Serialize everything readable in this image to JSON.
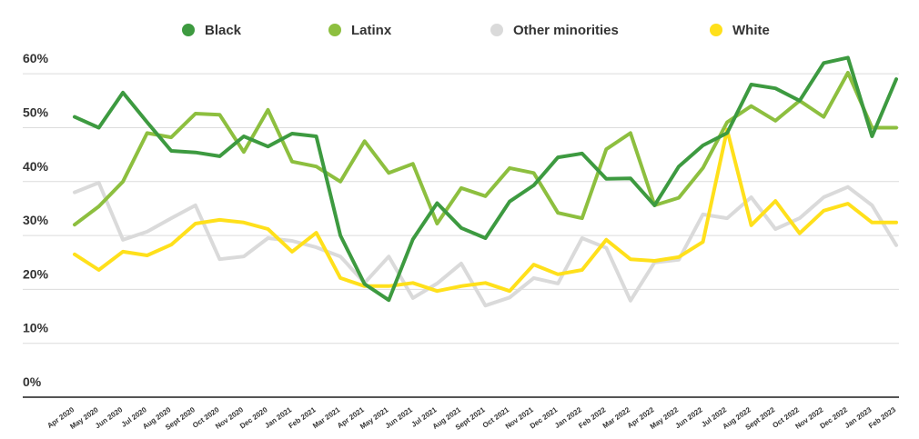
{
  "chart_data": {
    "type": "line",
    "categories": [
      "Apr 2020",
      "May 2020",
      "Jun 2020",
      "Jul 2020",
      "Aug 2020",
      "Sept 2020",
      "Oct 2020",
      "Nov 2020",
      "Dec 2020",
      "Jan 2021",
      "Feb 2021",
      "Mar 2021",
      "Apr 2021",
      "May 2021",
      "Jun 2021",
      "Jul 2021",
      "Aug 2021",
      "Sept 2021",
      "Oct 2021",
      "Nov 2021",
      "Dec 2021",
      "Jan 2022",
      "Feb 2022",
      "Mar 2022",
      "Apr 2022",
      "May 2022",
      "Jun 2022",
      "Jul 2022",
      "Aug 2022",
      "Sept 2022",
      "Oct 2022",
      "Nov 2022",
      "Dec 2022",
      "Jan 2023",
      "Feb 2023"
    ],
    "series": [
      {
        "name": "Black",
        "color": "#3d9a40",
        "values": [
          52,
          50,
          56.5,
          51,
          45.7,
          45.4,
          44.7,
          48.4,
          46.5,
          48.9,
          48.4,
          30,
          21,
          18,
          29.3,
          36,
          31.4,
          29.5,
          36.3,
          39.3,
          44.5,
          45.2,
          40.5,
          40.6,
          35.6,
          42.8,
          46.7,
          49,
          58,
          57.3,
          55,
          62,
          63,
          48.4,
          59
        ]
      },
      {
        "name": "Latinx",
        "color": "#8dbf3f",
        "values": [
          32,
          35.4,
          40,
          49,
          48.2,
          52.6,
          52.4,
          45.5,
          53.3,
          43.7,
          42.8,
          40,
          47.5,
          41.6,
          43.3,
          32.2,
          38.8,
          37.3,
          42.5,
          41.6,
          34.2,
          33.2,
          46,
          49,
          35.6,
          37,
          42.5,
          51,
          54,
          51.3,
          55,
          52,
          60.2,
          50,
          50
        ]
      },
      {
        "name": "Other minorities",
        "color": "#dadada",
        "values": [
          38,
          39.8,
          29.2,
          30.7,
          33.2,
          35.6,
          25.6,
          26.1,
          29.5,
          29,
          27.8,
          26.1,
          21.2,
          26.1,
          18.4,
          21.1,
          24.8,
          17,
          18.5,
          22.1,
          21.1,
          29.5,
          27.7,
          17.9,
          25,
          25.5,
          33.9,
          33.2,
          37.1,
          31.2,
          33.2,
          37.1,
          39,
          35.6,
          28.2
        ]
      },
      {
        "name": "White",
        "color": "#ffe01b",
        "values": [
          26.5,
          23.6,
          27,
          26.3,
          28.3,
          32.2,
          32.9,
          32.4,
          31.2,
          27,
          30.5,
          22.1,
          20.6,
          20.6,
          21.2,
          19.7,
          20.6,
          21.2,
          19.7,
          24.6,
          22.8,
          23.6,
          29.2,
          25.6,
          25.3,
          26,
          28.8,
          49.6,
          31.9,
          36.4,
          30.4,
          34.6,
          35.9,
          32.4,
          32.4
        ]
      }
    ],
    "ylim": [
      0,
      65
    ],
    "yticks": [
      {
        "value": 0,
        "label": "0%"
      },
      {
        "value": 10,
        "label": "10%"
      },
      {
        "value": 20,
        "label": "20%"
      },
      {
        "value": 30,
        "label": "30%"
      },
      {
        "value": 40,
        "label": "40%"
      },
      {
        "value": 50,
        "label": "50%"
      },
      {
        "value": 60,
        "label": "60%"
      }
    ],
    "grid": true,
    "legend": "top"
  }
}
